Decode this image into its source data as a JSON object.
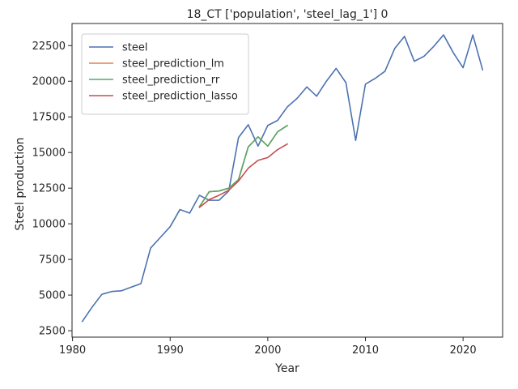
{
  "chart_data": {
    "type": "line",
    "title": "18_CT ['population', 'steel_lag_1'] 0",
    "xlabel": "Year",
    "ylabel": "Steel production",
    "xlim": [
      1979.95,
      2024.05
    ],
    "ylim": [
      2050,
      24050
    ],
    "xticks": [
      1980,
      1990,
      2000,
      2010,
      2020
    ],
    "yticks": [
      2500,
      5000,
      7500,
      10000,
      12500,
      15000,
      17500,
      20000,
      22500
    ],
    "grid": false,
    "legend_position": "top-left",
    "series": [
      {
        "name": "steel",
        "color": "#4c72b0",
        "x": [
          1981,
          1982,
          1983,
          1984,
          1985,
          1986,
          1987,
          1988,
          1989,
          1990,
          1991,
          1992,
          1993,
          1994,
          1995,
          1996,
          1997,
          1998,
          1999,
          2000,
          2001,
          2002,
          2003,
          2004,
          2005,
          2006,
          2007,
          2008,
          2009,
          2010,
          2011,
          2012,
          2013,
          2014,
          2015,
          2016,
          2017,
          2018,
          2019,
          2020,
          2021,
          2022
        ],
        "y": [
          3150,
          4150,
          5050,
          5250,
          5300,
          5550,
          5800,
          8300,
          9050,
          9800,
          11000,
          10750,
          12000,
          11650,
          11650,
          12300,
          16050,
          16950,
          15450,
          16900,
          17250,
          18200,
          18800,
          19600,
          18950,
          20000,
          20900,
          19900,
          15850,
          19800,
          20200,
          20700,
          22300,
          23150,
          21400,
          21750,
          22450,
          23250,
          22000,
          20950,
          23250,
          20800
        ]
      },
      {
        "name": "steel_prediction_lm",
        "color": "#dd8452",
        "x": [
          1993,
          1994,
          1995,
          1996,
          1997,
          1998,
          1999,
          2000,
          2001,
          2002
        ],
        "y": [
          11200,
          12250,
          12300,
          12500,
          13100,
          15400,
          16100,
          15450,
          16450,
          16900
        ]
      },
      {
        "name": "steel_prediction_rr",
        "color": "#55a868",
        "x": [
          1993,
          1994,
          1995,
          1996,
          1997,
          1998,
          1999,
          2000,
          2001,
          2002
        ],
        "y": [
          11200,
          12250,
          12300,
          12500,
          13100,
          15400,
          16100,
          15450,
          16450,
          16900
        ]
      },
      {
        "name": "steel_prediction_lasso",
        "color": "#c44e52",
        "x": [
          1993,
          1994,
          1995,
          1996,
          1997,
          1998,
          1999,
          2000,
          2001,
          2002
        ],
        "y": [
          11150,
          11700,
          12000,
          12350,
          13000,
          13900,
          14450,
          14650,
          15200,
          15600
        ]
      }
    ]
  }
}
